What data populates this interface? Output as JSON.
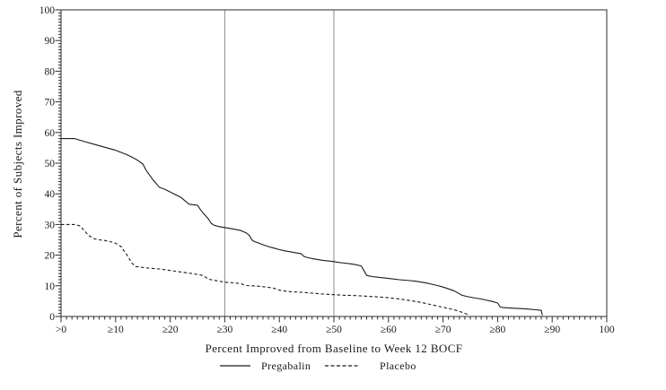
{
  "figure": {
    "background": "#ffffff",
    "frame_color": "#2b2b2b",
    "text_color": "#1a1a1a"
  },
  "chart_data": {
    "type": "line",
    "title": "",
    "xlabel": "Percent Improved from Baseline to Week 12 BOCF",
    "ylabel": "Percent of Subjects Improved",
    "xlim": [
      0,
      100
    ],
    "ylim": [
      0,
      100
    ],
    "grid": false,
    "x_tick_values": [
      0,
      10,
      20,
      30,
      40,
      50,
      60,
      70,
      80,
      90,
      100
    ],
    "x_tick_labels": [
      ">0",
      "≥10",
      "≥20",
      "≥30",
      "≥40",
      "≥50",
      "≥60",
      "≥70",
      "≥80",
      "≥90",
      "100"
    ],
    "y_tick_values": [
      0,
      10,
      20,
      30,
      40,
      50,
      60,
      70,
      80,
      90,
      100
    ],
    "y_tick_labels": [
      "0",
      "10",
      "20",
      "30",
      "40",
      "50",
      "60",
      "70",
      "80",
      "90",
      "100"
    ],
    "minor_tick_step": 1,
    "reference_lines_x": [
      30,
      50
    ],
    "reference_line_color": "#8c8c8c",
    "legend_position": "bottom-center",
    "series": [
      {
        "name": "Pregabalin",
        "style": "solid",
        "color": "#1a1a1a",
        "points": [
          [
            0,
            58
          ],
          [
            2.5,
            58
          ],
          [
            4,
            57.2
          ],
          [
            6,
            56.2
          ],
          [
            8,
            55.2
          ],
          [
            10,
            54.2
          ],
          [
            12,
            52.8
          ],
          [
            13,
            52
          ],
          [
            14,
            51
          ],
          [
            15,
            49.7
          ],
          [
            15.6,
            47.7
          ],
          [
            16.8,
            44.7
          ],
          [
            18,
            42.2
          ],
          [
            19,
            41.5
          ],
          [
            20,
            40.6
          ],
          [
            21,
            39.7
          ],
          [
            22,
            38.8
          ],
          [
            23,
            37.3
          ],
          [
            23.5,
            36.6
          ],
          [
            25,
            36.3
          ],
          [
            25.5,
            35
          ],
          [
            26,
            33.8
          ],
          [
            27,
            31.8
          ],
          [
            27.5,
            30.4
          ],
          [
            28,
            29.8
          ],
          [
            29,
            29.3
          ],
          [
            30,
            29
          ],
          [
            31,
            28.7
          ],
          [
            32,
            28.4
          ],
          [
            33,
            28
          ],
          [
            34,
            27.2
          ],
          [
            34.5,
            26.4
          ],
          [
            35,
            24.9
          ],
          [
            35.5,
            24.4
          ],
          [
            36,
            24.1
          ],
          [
            37,
            23.4
          ],
          [
            38,
            22.8
          ],
          [
            39,
            22.3
          ],
          [
            40,
            21.8
          ],
          [
            41,
            21.4
          ],
          [
            42,
            21.1
          ],
          [
            43,
            20.8
          ],
          [
            44,
            20.5
          ],
          [
            44.5,
            19.6
          ],
          [
            45,
            19.3
          ],
          [
            46,
            18.9
          ],
          [
            47,
            18.6
          ],
          [
            48,
            18.3
          ],
          [
            49,
            18.1
          ],
          [
            50,
            17.9
          ],
          [
            51,
            17.6
          ],
          [
            52,
            17.4
          ],
          [
            53,
            17.2
          ],
          [
            54,
            16.9
          ],
          [
            55,
            16.5
          ],
          [
            55.5,
            15
          ],
          [
            56,
            13.4
          ],
          [
            57,
            13
          ],
          [
            58,
            12.8
          ],
          [
            60,
            12.4
          ],
          [
            62,
            12
          ],
          [
            64,
            11.7
          ],
          [
            65,
            11.5
          ],
          [
            66,
            11.2
          ],
          [
            67,
            10.9
          ],
          [
            68,
            10.5
          ],
          [
            69,
            10.1
          ],
          [
            70,
            9.6
          ],
          [
            71,
            9
          ],
          [
            72,
            8.4
          ],
          [
            73,
            7.4
          ],
          [
            73.5,
            6.9
          ],
          [
            74,
            6.7
          ],
          [
            75,
            6.3
          ],
          [
            76,
            6
          ],
          [
            77,
            5.7
          ],
          [
            78,
            5.3
          ],
          [
            79,
            4.9
          ],
          [
            80,
            4.4
          ],
          [
            80.5,
            3.1
          ],
          [
            81,
            2.9
          ],
          [
            83,
            2.7
          ],
          [
            85,
            2.5
          ],
          [
            87,
            2.2
          ],
          [
            88,
            2
          ],
          [
            88.2,
            0.4
          ]
        ]
      },
      {
        "name": "Placebo",
        "style": "dashed",
        "color": "#1a1a1a",
        "points": [
          [
            0,
            30
          ],
          [
            2.5,
            30
          ],
          [
            3.5,
            29.5
          ],
          [
            4.5,
            27.5
          ],
          [
            5,
            26.5
          ],
          [
            6,
            25.4
          ],
          [
            7,
            25
          ],
          [
            8,
            24.8
          ],
          [
            9,
            24.4
          ],
          [
            10,
            23.9
          ],
          [
            11,
            22.8
          ],
          [
            11.5,
            21.5
          ],
          [
            12,
            20.3
          ],
          [
            13,
            17.4
          ],
          [
            13.7,
            16.3
          ],
          [
            15,
            16
          ],
          [
            16,
            15.8
          ],
          [
            18,
            15.5
          ],
          [
            20,
            15
          ],
          [
            22,
            14.5
          ],
          [
            24,
            14
          ],
          [
            26,
            13.4
          ],
          [
            26.5,
            12.8
          ],
          [
            27,
            12.2
          ],
          [
            28,
            11.8
          ],
          [
            30,
            11.2
          ],
          [
            32,
            10.9
          ],
          [
            33,
            10.7
          ],
          [
            33.5,
            10.3
          ],
          [
            34,
            10.1
          ],
          [
            36,
            9.9
          ],
          [
            38,
            9.5
          ],
          [
            39,
            9.2
          ],
          [
            40,
            8.6
          ],
          [
            41,
            8.3
          ],
          [
            42,
            8.1
          ],
          [
            44,
            7.9
          ],
          [
            46,
            7.6
          ],
          [
            48,
            7.3
          ],
          [
            50,
            7.1
          ],
          [
            52,
            6.9
          ],
          [
            54,
            6.8
          ],
          [
            56,
            6.6
          ],
          [
            58,
            6.4
          ],
          [
            60,
            6.1
          ],
          [
            62,
            5.7
          ],
          [
            64,
            5.2
          ],
          [
            66,
            4.6
          ],
          [
            68,
            3.8
          ],
          [
            69,
            3.4
          ],
          [
            70,
            3
          ],
          [
            71,
            2.6
          ],
          [
            72,
            2.2
          ],
          [
            73,
            1.7
          ],
          [
            74,
            1
          ],
          [
            74.5,
            0.7
          ]
        ]
      }
    ]
  }
}
